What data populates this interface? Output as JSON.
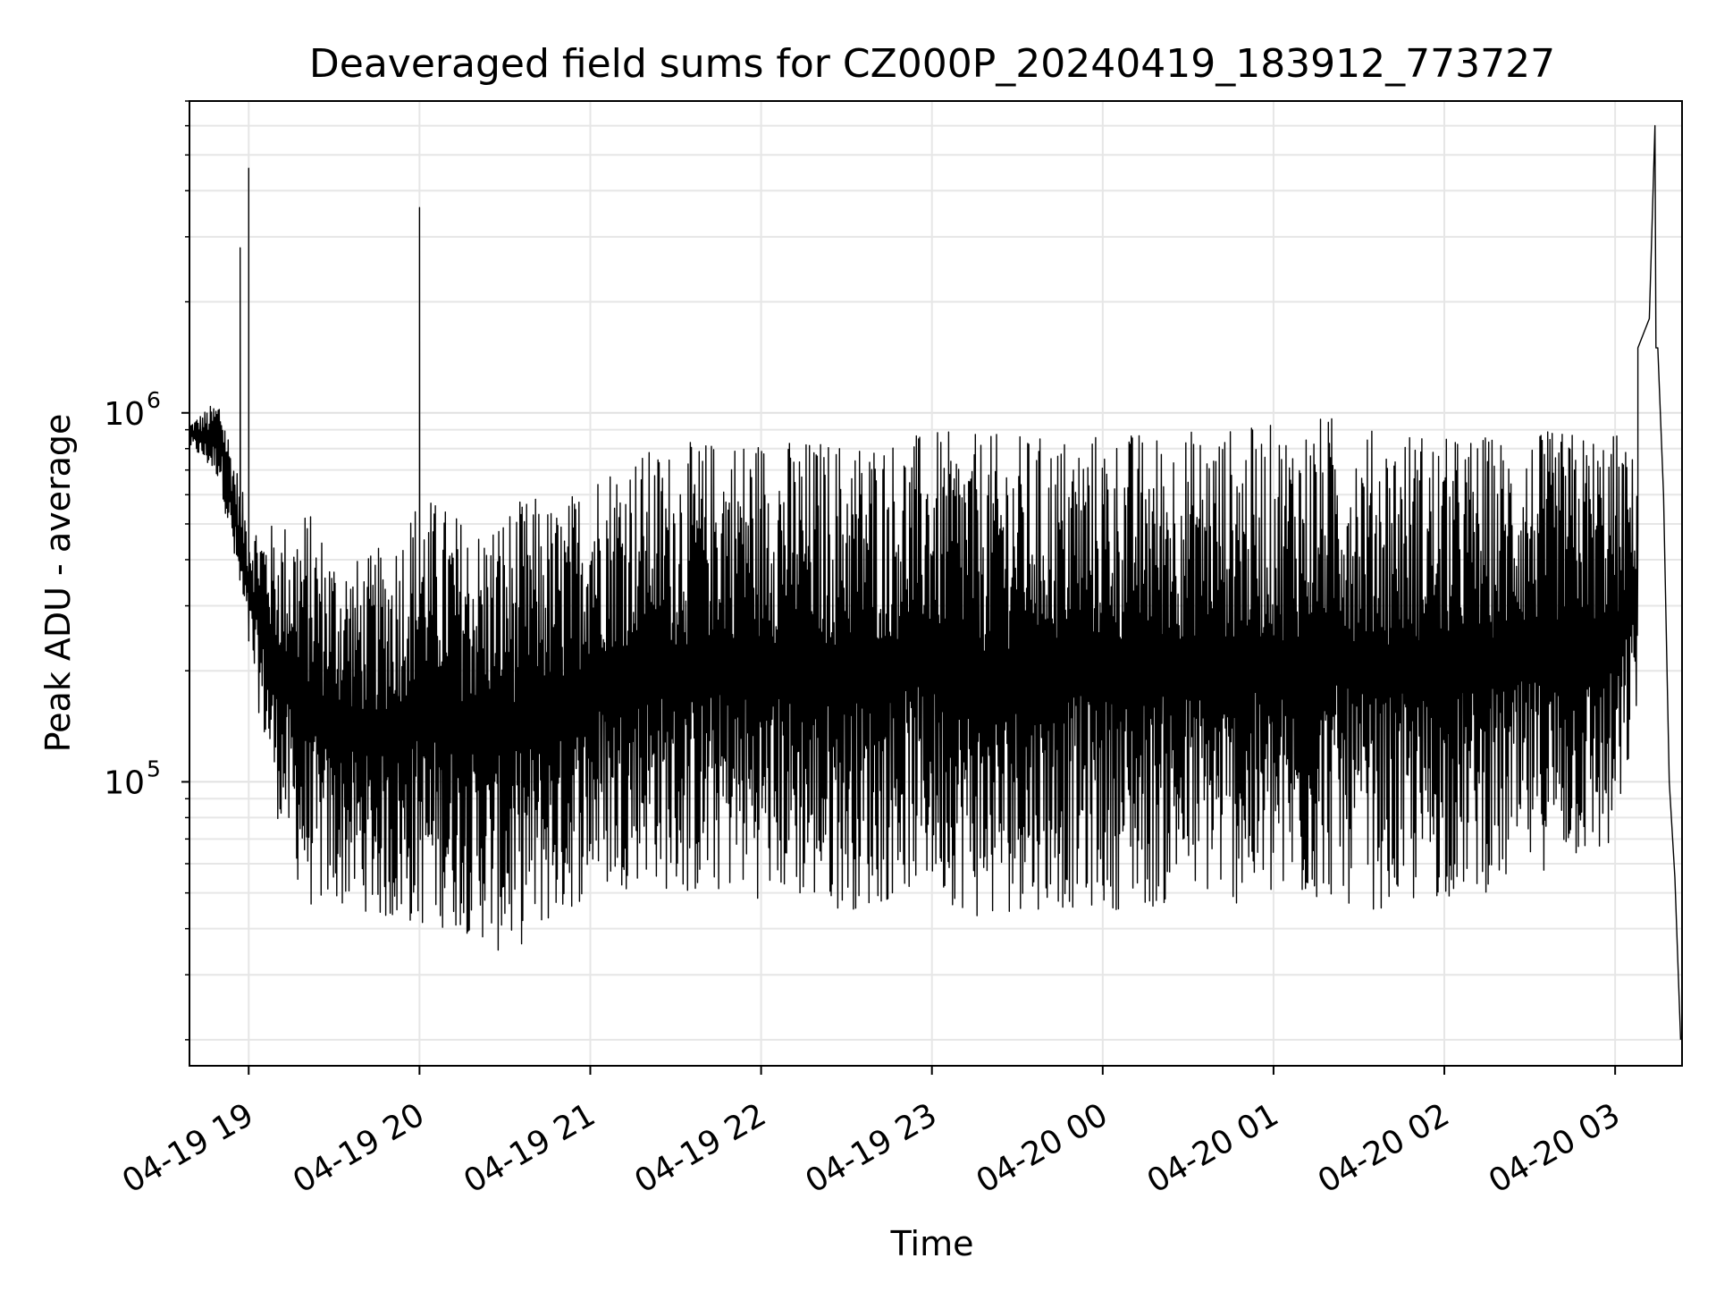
{
  "chart_data": {
    "type": "line",
    "title": "Deaveraged field sums for CZ000P_20240419_183912_773727",
    "xlabel": "Time",
    "ylabel": "Peak ADU - average",
    "yscale": "log",
    "xlim": [
      "2024-04-19 18:39:12",
      "2024-04-20 03:23:30"
    ],
    "ylim": [
      17000,
      7000000
    ],
    "grid": true,
    "line_color": "#000000",
    "x_ticks": [
      "04-19 19",
      "04-19 20",
      "04-19 21",
      "04-19 22",
      "04-19 23",
      "04-20 00",
      "04-20 01",
      "04-20 02",
      "04-20 03"
    ],
    "y_ticks": [
      {
        "base": "10",
        "exp": "5"
      },
      {
        "base": "10",
        "exp": "6"
      }
    ],
    "series": [
      {
        "name": "",
        "sampled": true,
        "envelope_times": [
          "2024-04-19 18:40",
          "2024-04-19 18:50",
          "2024-04-19 19:00",
          "2024-04-19 19:10",
          "2024-04-19 19:20",
          "2024-04-19 19:30",
          "2024-04-19 19:40",
          "2024-04-19 19:50",
          "2024-04-19 20:00",
          "2024-04-19 20:10",
          "2024-04-19 20:20",
          "2024-04-19 20:30",
          "2024-04-19 20:40",
          "2024-04-19 20:50",
          "2024-04-19 21:00",
          "2024-04-19 21:10",
          "2024-04-19 21:20",
          "2024-04-19 21:30",
          "2024-04-19 21:40",
          "2024-04-19 21:50",
          "2024-04-19 22:00",
          "2024-04-19 22:10",
          "2024-04-19 22:20",
          "2024-04-19 22:30",
          "2024-04-19 22:40",
          "2024-04-19 22:50",
          "2024-04-19 23:00",
          "2024-04-19 23:10",
          "2024-04-19 23:20",
          "2024-04-19 23:30",
          "2024-04-19 23:40",
          "2024-04-19 23:50",
          "2024-04-20 00:00",
          "2024-04-20 00:10",
          "2024-04-20 00:20",
          "2024-04-20 00:30",
          "2024-04-20 00:40",
          "2024-04-20 00:50",
          "2024-04-20 01:00",
          "2024-04-20 01:10",
          "2024-04-20 01:20",
          "2024-04-20 01:30",
          "2024-04-20 01:40",
          "2024-04-20 01:50",
          "2024-04-20 02:00",
          "2024-04-20 02:10",
          "2024-04-20 02:20",
          "2024-04-20 02:30",
          "2024-04-20 02:40",
          "2024-04-20 02:50",
          "2024-04-20 03:00",
          "2024-04-20 03:10"
        ],
        "envelope_max": [
          950000,
          1100000,
          520000,
          500000,
          560000,
          440000,
          400000,
          460000,
          620000,
          560000,
          500000,
          560000,
          600000,
          560000,
          720000,
          780000,
          800000,
          820000,
          850000,
          880000,
          880000,
          860000,
          860000,
          860000,
          880000,
          870000,
          900000,
          880000,
          880000,
          880000,
          870000,
          890000,
          900000,
          900000,
          900000,
          910000,
          920000,
          920000,
          940000,
          960000,
          1000000,
          920000,
          900000,
          920000,
          860000,
          880000,
          880000,
          880000,
          900000,
          900000,
          900000,
          700000
        ],
        "envelope_min": [
          800000,
          650000,
          220000,
          80000,
          45000,
          45000,
          45000,
          40000,
          40000,
          40000,
          38000,
          33000,
          38000,
          42000,
          50000,
          50000,
          55000,
          48000,
          48000,
          50000,
          48000,
          48000,
          45000,
          45000,
          45000,
          50000,
          50000,
          45000,
          40000,
          45000,
          45000,
          45000,
          45000,
          45000,
          45000,
          48000,
          48000,
          45000,
          45000,
          45000,
          48000,
          45000,
          45000,
          45000,
          48000,
          50000,
          50000,
          55000,
          60000,
          60000,
          60000,
          200000
        ],
        "spikes": [
          {
            "t": "2024-04-19 18:57",
            "y": 2800000
          },
          {
            "t": "2024-04-19 19:00",
            "y": 4600000
          },
          {
            "t": "2024-04-19 20:00",
            "y": 3600000
          },
          {
            "t": "2024-04-20 03:14",
            "y": 6000000
          }
        ],
        "tail": [
          {
            "t": "2024-04-20 03:08",
            "y": 1500000
          },
          {
            "t": "2024-04-20 03:12",
            "y": 1800000
          },
          {
            "t": "2024-04-20 03:15",
            "y": 1500000
          },
          {
            "t": "2024-04-20 03:17",
            "y": 600000
          },
          {
            "t": "2024-04-20 03:19",
            "y": 100000
          },
          {
            "t": "2024-04-20 03:21",
            "y": 55000
          },
          {
            "t": "2024-04-20 03:23",
            "y": 20000
          }
        ]
      }
    ]
  }
}
